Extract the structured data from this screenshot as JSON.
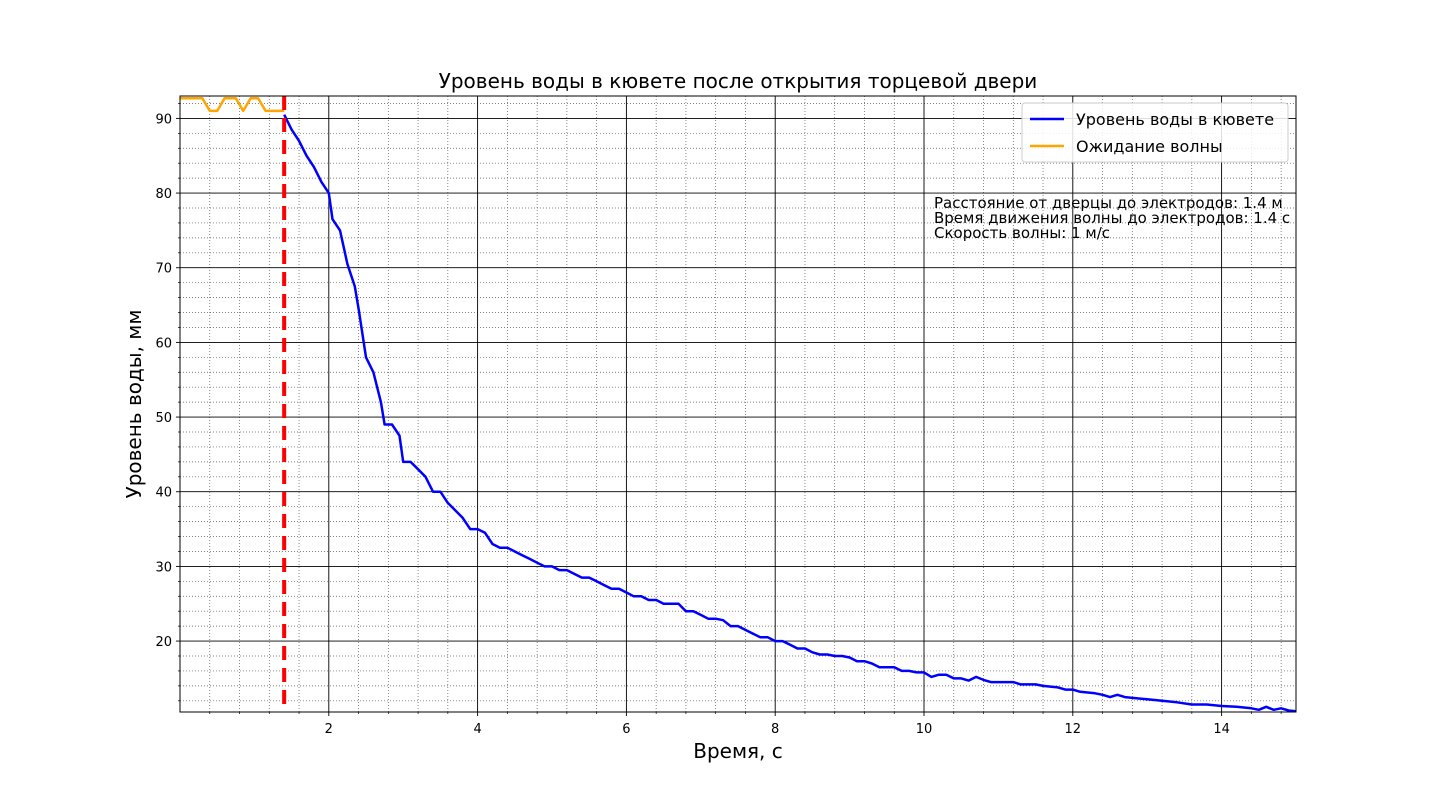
{
  "chart_data": {
    "type": "line",
    "title": "Уровень воды в кювете после открытия торцевой двери",
    "xlabel": "Время, с",
    "ylabel": "Уровень воды, мм",
    "xlim": [
      0,
      15
    ],
    "ylim": [
      10.5,
      93
    ],
    "xticks": [
      2,
      4,
      6,
      8,
      10,
      12,
      14
    ],
    "yticks": [
      20,
      30,
      40,
      50,
      60,
      70,
      80,
      90
    ],
    "grid": true,
    "minor_grid": true,
    "legend_position": "top-right",
    "series": [
      {
        "name": "Уровень воды в кювете",
        "color": "#0000ff",
        "points": [
          [
            1.4,
            90.5
          ],
          [
            1.5,
            88.5
          ],
          [
            1.6,
            87
          ],
          [
            1.7,
            85
          ],
          [
            1.8,
            83.5
          ],
          [
            1.9,
            81.5
          ],
          [
            2.0,
            80
          ],
          [
            2.05,
            76.5
          ],
          [
            2.15,
            75
          ],
          [
            2.25,
            70.5
          ],
          [
            2.35,
            67.5
          ],
          [
            2.4,
            64.5
          ],
          [
            2.5,
            58
          ],
          [
            2.6,
            56
          ],
          [
            2.7,
            52
          ],
          [
            2.75,
            49
          ],
          [
            2.85,
            49
          ],
          [
            2.95,
            47.5
          ],
          [
            3.0,
            44
          ],
          [
            3.1,
            44
          ],
          [
            3.2,
            43
          ],
          [
            3.3,
            42
          ],
          [
            3.4,
            40
          ],
          [
            3.5,
            40
          ],
          [
            3.6,
            38.5
          ],
          [
            3.7,
            37.5
          ],
          [
            3.8,
            36.5
          ],
          [
            3.9,
            35
          ],
          [
            4.0,
            35
          ],
          [
            4.1,
            34.5
          ],
          [
            4.2,
            33
          ],
          [
            4.3,
            32.5
          ],
          [
            4.4,
            32.5
          ],
          [
            4.5,
            32
          ],
          [
            4.6,
            31.5
          ],
          [
            4.7,
            31
          ],
          [
            4.8,
            30.5
          ],
          [
            4.9,
            30
          ],
          [
            5.0,
            30
          ],
          [
            5.1,
            29.5
          ],
          [
            5.2,
            29.5
          ],
          [
            5.3,
            29
          ],
          [
            5.4,
            28.5
          ],
          [
            5.5,
            28.5
          ],
          [
            5.6,
            28
          ],
          [
            5.7,
            27.5
          ],
          [
            5.8,
            27
          ],
          [
            5.9,
            27
          ],
          [
            6.0,
            26.5
          ],
          [
            6.1,
            26
          ],
          [
            6.2,
            26
          ],
          [
            6.3,
            25.5
          ],
          [
            6.4,
            25.5
          ],
          [
            6.5,
            25
          ],
          [
            6.6,
            25
          ],
          [
            6.7,
            25
          ],
          [
            6.8,
            24
          ],
          [
            6.9,
            24
          ],
          [
            7.0,
            23.5
          ],
          [
            7.1,
            23
          ],
          [
            7.2,
            23
          ],
          [
            7.3,
            22.8
          ],
          [
            7.4,
            22
          ],
          [
            7.5,
            22
          ],
          [
            7.6,
            21.5
          ],
          [
            7.7,
            21
          ],
          [
            7.8,
            20.5
          ],
          [
            7.9,
            20.5
          ],
          [
            8.0,
            20
          ],
          [
            8.1,
            20
          ],
          [
            8.2,
            19.5
          ],
          [
            8.3,
            19
          ],
          [
            8.4,
            19
          ],
          [
            8.5,
            18.5
          ],
          [
            8.6,
            18.2
          ],
          [
            8.7,
            18.2
          ],
          [
            8.8,
            18
          ],
          [
            8.9,
            18
          ],
          [
            9.0,
            17.8
          ],
          [
            9.1,
            17.3
          ],
          [
            9.2,
            17.3
          ],
          [
            9.3,
            17
          ],
          [
            9.4,
            16.5
          ],
          [
            9.5,
            16.5
          ],
          [
            9.6,
            16.5
          ],
          [
            9.7,
            16
          ],
          [
            9.8,
            16
          ],
          [
            9.9,
            15.8
          ],
          [
            10.0,
            15.8
          ],
          [
            10.1,
            15.2
          ],
          [
            10.2,
            15.5
          ],
          [
            10.3,
            15.5
          ],
          [
            10.4,
            15
          ],
          [
            10.5,
            15
          ],
          [
            10.6,
            14.7
          ],
          [
            10.7,
            15.2
          ],
          [
            10.8,
            14.8
          ],
          [
            10.9,
            14.5
          ],
          [
            11.0,
            14.5
          ],
          [
            11.2,
            14.5
          ],
          [
            11.3,
            14.2
          ],
          [
            11.5,
            14.2
          ],
          [
            11.6,
            14
          ],
          [
            11.8,
            13.8
          ],
          [
            11.9,
            13.5
          ],
          [
            12.0,
            13.5
          ],
          [
            12.1,
            13.2
          ],
          [
            12.3,
            13
          ],
          [
            12.4,
            12.8
          ],
          [
            12.5,
            12.5
          ],
          [
            12.6,
            12.8
          ],
          [
            12.7,
            12.5
          ],
          [
            13.0,
            12.2
          ],
          [
            13.2,
            12
          ],
          [
            13.4,
            11.8
          ],
          [
            13.6,
            11.5
          ],
          [
            13.8,
            11.5
          ],
          [
            14.0,
            11.3
          ],
          [
            14.2,
            11.2
          ],
          [
            14.4,
            11
          ],
          [
            14.5,
            10.8
          ],
          [
            14.6,
            11.2
          ],
          [
            14.7,
            10.8
          ],
          [
            14.8,
            11
          ],
          [
            14.9,
            10.7
          ],
          [
            15.0,
            10.6
          ]
        ]
      },
      {
        "name": "Ожидание волны",
        "color": "#ffa500",
        "points": [
          [
            0.0,
            92.7
          ],
          [
            0.3,
            92.7
          ],
          [
            0.4,
            91
          ],
          [
            0.5,
            91
          ],
          [
            0.6,
            92.7
          ],
          [
            0.75,
            92.7
          ],
          [
            0.85,
            91
          ],
          [
            0.95,
            92.7
          ],
          [
            1.05,
            92.7
          ],
          [
            1.15,
            91
          ],
          [
            1.4,
            91
          ]
        ]
      }
    ],
    "vertical_line": {
      "x": 1.4,
      "color": "#ff0000",
      "style": "dashed"
    },
    "annotations": [
      "Расстояние от дверцы до электродов: 1.4 м",
      "Время движения волны до электродов: 1.4 с",
      "Скорость волны: 1 м/с"
    ]
  }
}
